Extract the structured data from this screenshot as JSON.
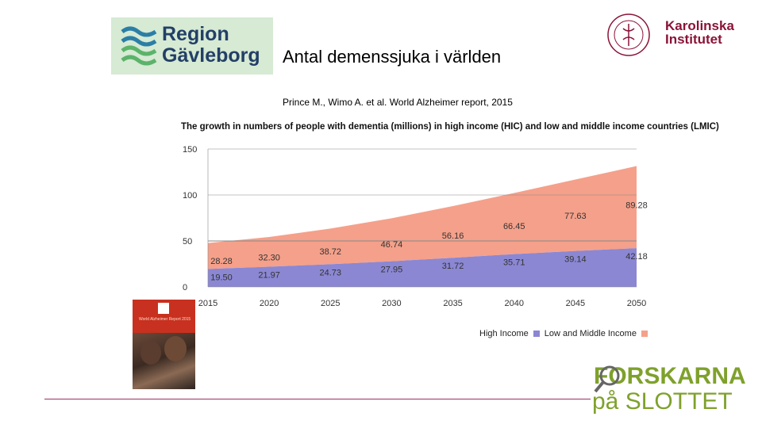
{
  "header": {
    "left_logo": {
      "line1": "Region",
      "line2": "Gävleborg"
    },
    "title": "Antal demenssjuka i världen",
    "citation": "Prince M., Wimo A. et al. World Alzheimer report, 2015",
    "right_logo": {
      "line1": "Karolinska",
      "line2": "Institutet",
      "seal_text": "KAROLINSKA INSTITUTET ANNO 1810"
    }
  },
  "chart_data": {
    "type": "area",
    "title": "The growth in numbers of people with dementia (millions) in high income (HIC) and low and middle income countries (LMIC)",
    "x": [
      "2015",
      "2020",
      "2025",
      "2030",
      "2035",
      "2040",
      "2045",
      "2050"
    ],
    "ylim": [
      0,
      150
    ],
    "yticks": [
      "150",
      "100",
      "50",
      "0"
    ],
    "stacked": true,
    "series": [
      {
        "name": "High Income",
        "color": "#8b87d3",
        "values": [
          19.5,
          21.97,
          24.73,
          27.95,
          31.72,
          35.71,
          39.14,
          42.18
        ],
        "labels": [
          "19.50",
          "21.97",
          "24.73",
          "27.95",
          "31.72",
          "35.71",
          "39.14",
          "42.18"
        ]
      },
      {
        "name": "Low and Middle Income",
        "color": "#f5a08a",
        "values": [
          28.28,
          32.3,
          38.72,
          46.74,
          56.16,
          66.45,
          77.63,
          89.28
        ],
        "labels": [
          "28.28",
          "32.30",
          "38.72",
          "46.74",
          "56.16",
          "66.45",
          "77.63",
          "89.28"
        ]
      }
    ],
    "grid": true,
    "legend": "bottom-right"
  },
  "footer": {
    "brand_line1": "FORSKARNA",
    "brand_line2": "på SLOTTET",
    "report_cover_text": "World Alzheimer Report 2015"
  }
}
